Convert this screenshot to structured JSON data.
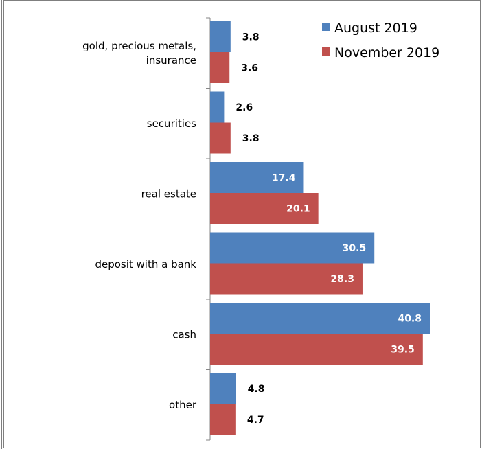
{
  "chart_data": {
    "type": "bar",
    "orientation": "horizontal",
    "categories": [
      "gold, precious metals, insurance",
      "securities",
      "real estate",
      "deposit with a bank",
      "cash",
      "other"
    ],
    "category_label_lines": [
      [
        "gold, precious metals,",
        "insurance"
      ],
      [
        "securities"
      ],
      [
        "real estate"
      ],
      [
        "deposit with a bank"
      ],
      [
        "cash"
      ],
      [
        "other"
      ]
    ],
    "series": [
      {
        "name": "August 2019",
        "color": "#4f81bd",
        "values": [
          3.8,
          2.6,
          17.4,
          30.5,
          40.8,
          4.8
        ]
      },
      {
        "name": "November 2019",
        "color": "#c0504d",
        "values": [
          3.6,
          3.8,
          20.1,
          28.3,
          39.5,
          4.7
        ]
      }
    ],
    "xlim": [
      0,
      50
    ],
    "legend_position": "top-right",
    "grid": false,
    "data_labels": true
  }
}
